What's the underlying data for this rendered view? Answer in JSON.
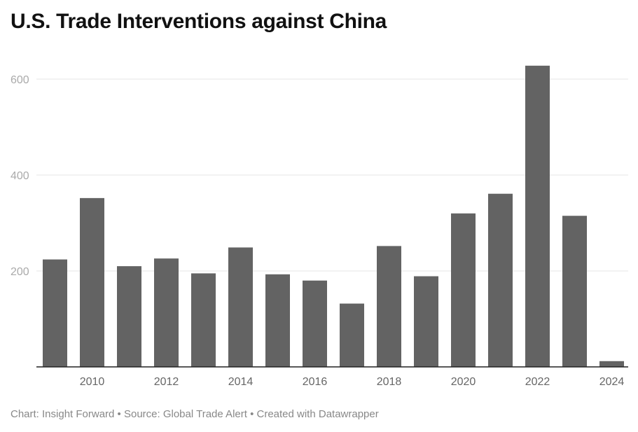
{
  "title": "U.S. Trade Interventions against China",
  "footer": "Chart: Insight Forward • Source: Global Trade Alert • Created with Datawrapper",
  "colors": {
    "bar": "#636363",
    "grid": "#e4e4e4",
    "axis": "#222222",
    "y_tick_text": "#aaaaaa",
    "x_tick_text": "#666666"
  },
  "chart_data": {
    "type": "bar",
    "title": "U.S. Trade Interventions against China",
    "xlabel": "",
    "ylabel": "",
    "categories": [
      "2009",
      "2010",
      "2011",
      "2012",
      "2013",
      "2014",
      "2015",
      "2016",
      "2017",
      "2018",
      "2019",
      "2020",
      "2021",
      "2022",
      "2023",
      "2024"
    ],
    "values": [
      224,
      352,
      210,
      226,
      195,
      249,
      193,
      180,
      132,
      252,
      189,
      320,
      361,
      628,
      315,
      12
    ],
    "ylim": [
      0,
      640
    ],
    "y_ticks": [
      "200",
      "400",
      "600"
    ],
    "y_tick_values": [
      200,
      400,
      600
    ],
    "x_tick_labels": [
      "2010",
      "2012",
      "2014",
      "2016",
      "2018",
      "2020",
      "2022",
      "2024"
    ],
    "grid": true,
    "legend": "none"
  }
}
